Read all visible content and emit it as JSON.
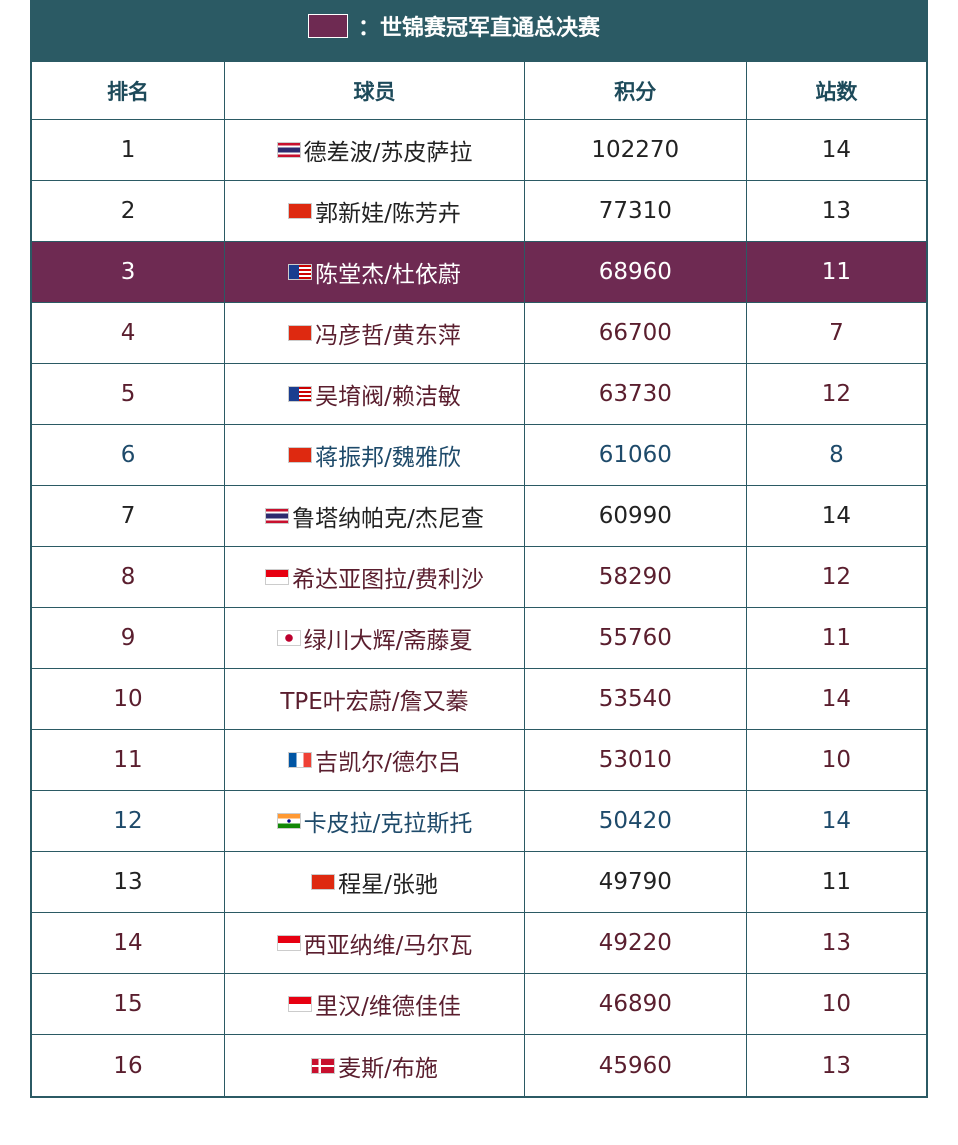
{
  "legend": {
    "label": "：世锦赛冠军直通总决赛"
  },
  "table": {
    "header": [
      "排名",
      "球员",
      "积分",
      "站数"
    ],
    "rows": [
      [
        1,
        "德差波/苏皮萨拉",
        102270,
        14
      ],
      [
        2,
        "郭新娃/陈芳卉",
        77310,
        13
      ],
      [
        3,
        "陈堂杰/杜依蔚",
        68960,
        11
      ],
      [
        4,
        "冯彦哲/黄东萍",
        66700,
        7
      ],
      [
        5,
        "吴堉阀/赖洁敏",
        63730,
        12
      ],
      [
        6,
        "蒋振邦/魏雅欣",
        61060,
        8
      ],
      [
        7,
        "鲁塔纳帕克/杰尼查",
        60990,
        14
      ],
      [
        8,
        "希达亚图拉/费利沙",
        58290,
        12
      ],
      [
        9,
        "绿川大辉/斋藤夏",
        55760,
        11
      ],
      [
        10,
        "TPE叶宏蔚/詹又蓁",
        53540,
        14
      ],
      [
        11,
        "吉凯尔/德尔吕",
        53010,
        10
      ],
      [
        12,
        "卡皮拉/克拉斯托",
        50420,
        14
      ],
      [
        13,
        "程星/张驰",
        49790,
        11
      ],
      [
        14,
        "西亚纳维/马尔瓦",
        49220,
        13
      ],
      [
        15,
        "里汉/维德佳佳",
        46890,
        10
      ],
      [
        16,
        "麦斯/布施",
        45960,
        13
      ]
    ]
  }
}
